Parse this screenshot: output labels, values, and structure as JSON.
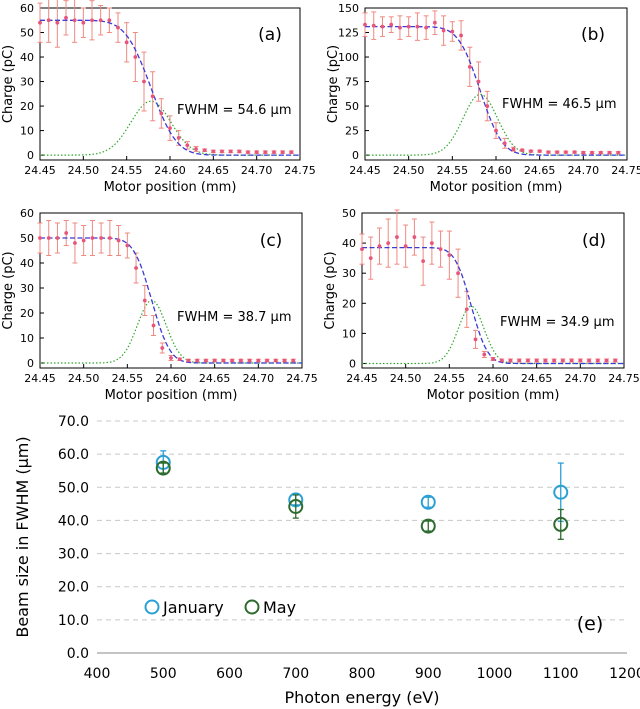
{
  "chart_data": [
    {
      "panel": "a",
      "type": "scatter",
      "xlabel": "Motor position (mm)",
      "ylabel": "Charge (pC)",
      "xlim": [
        24.45,
        24.75
      ],
      "ylim": [
        -2,
        60
      ],
      "xticks": [
        "24.45",
        "24.50",
        "24.55",
        "24.60",
        "24.65",
        "24.70",
        "24.75"
      ],
      "yticks": [
        "0",
        "10",
        "20",
        "30",
        "40",
        "50",
        "60"
      ],
      "annotation": "FWHM = 54.6 μm",
      "letter": "(a)",
      "edge_model": {
        "level": 55,
        "center": 24.578,
        "fwhm_mm": 0.0546,
        "gauss_peak": 22
      },
      "points": [
        {
          "x": 24.45,
          "y": 54,
          "err": 8
        },
        {
          "x": 24.46,
          "y": 55,
          "err": 9
        },
        {
          "x": 24.47,
          "y": 54,
          "err": 10
        },
        {
          "x": 24.48,
          "y": 56,
          "err": 7
        },
        {
          "x": 24.49,
          "y": 55,
          "err": 9
        },
        {
          "x": 24.5,
          "y": 54,
          "err": 6
        },
        {
          "x": 24.51,
          "y": 55,
          "err": 8
        },
        {
          "x": 24.52,
          "y": 55,
          "err": 6
        },
        {
          "x": 24.53,
          "y": 55,
          "err": 5
        },
        {
          "x": 24.54,
          "y": 52,
          "err": 6
        },
        {
          "x": 24.55,
          "y": 46,
          "err": 8
        },
        {
          "x": 24.56,
          "y": 40,
          "err": 10
        },
        {
          "x": 24.57,
          "y": 30,
          "err": 12
        },
        {
          "x": 24.58,
          "y": 24,
          "err": 10
        },
        {
          "x": 24.59,
          "y": 17,
          "err": 6
        },
        {
          "x": 24.6,
          "y": 11,
          "err": 5
        },
        {
          "x": 24.61,
          "y": 7,
          "err": 3
        },
        {
          "x": 24.62,
          "y": 4,
          "err": 1.5
        },
        {
          "x": 24.63,
          "y": 2.5,
          "err": 1
        },
        {
          "x": 24.64,
          "y": 2,
          "err": 0.5
        },
        {
          "x": 24.65,
          "y": 1.5,
          "err": 0.5
        },
        {
          "x": 24.66,
          "y": 1.5,
          "err": 0.5
        },
        {
          "x": 24.67,
          "y": 1.5,
          "err": 0.5
        },
        {
          "x": 24.68,
          "y": 1.5,
          "err": 0.5
        },
        {
          "x": 24.69,
          "y": 1.2,
          "err": 0.5
        },
        {
          "x": 24.7,
          "y": 1.2,
          "err": 0.5
        },
        {
          "x": 24.71,
          "y": 1.2,
          "err": 0.5
        },
        {
          "x": 24.72,
          "y": 1.2,
          "err": 0.5
        },
        {
          "x": 24.73,
          "y": 1.2,
          "err": 0.5
        },
        {
          "x": 24.74,
          "y": 1.2,
          "err": 0.5
        }
      ]
    },
    {
      "panel": "b",
      "type": "scatter",
      "xlabel": "Motor position (mm)",
      "ylabel": "Charge (pC)",
      "xlim": [
        24.45,
        24.75
      ],
      "ylim": [
        -5,
        150
      ],
      "xticks": [
        "24.45",
        "24.50",
        "24.55",
        "24.60",
        "24.65",
        "24.70",
        "24.75"
      ],
      "yticks": [
        "0",
        "25",
        "50",
        "75",
        "100",
        "125",
        "150"
      ],
      "annotation": "FWHM = 46.5 μm",
      "letter": "(b)",
      "edge_model": {
        "level": 131,
        "center": 24.582,
        "fwhm_mm": 0.0465,
        "gauss_peak": 62
      },
      "points": [
        {
          "x": 24.45,
          "y": 133,
          "err": 12
        },
        {
          "x": 24.46,
          "y": 132,
          "err": 14
        },
        {
          "x": 24.47,
          "y": 131,
          "err": 10
        },
        {
          "x": 24.48,
          "y": 133,
          "err": 8
        },
        {
          "x": 24.49,
          "y": 130,
          "err": 12
        },
        {
          "x": 24.5,
          "y": 131,
          "err": 10
        },
        {
          "x": 24.51,
          "y": 131,
          "err": 14
        },
        {
          "x": 24.52,
          "y": 130,
          "err": 12
        },
        {
          "x": 24.53,
          "y": 135,
          "err": 12
        },
        {
          "x": 24.54,
          "y": 127,
          "err": 15
        },
        {
          "x": 24.55,
          "y": 126,
          "err": 10
        },
        {
          "x": 24.56,
          "y": 122,
          "err": 15
        },
        {
          "x": 24.57,
          "y": 90,
          "err": 20
        },
        {
          "x": 24.58,
          "y": 75,
          "err": 20
        },
        {
          "x": 24.59,
          "y": 50,
          "err": 15
        },
        {
          "x": 24.6,
          "y": 25,
          "err": 8
        },
        {
          "x": 24.61,
          "y": 12,
          "err": 5
        },
        {
          "x": 24.62,
          "y": 6,
          "err": 2
        },
        {
          "x": 24.63,
          "y": 5,
          "err": 1
        },
        {
          "x": 24.64,
          "y": 4,
          "err": 1
        },
        {
          "x": 24.65,
          "y": 4,
          "err": 1
        },
        {
          "x": 24.66,
          "y": 3,
          "err": 1
        },
        {
          "x": 24.67,
          "y": 3,
          "err": 1
        },
        {
          "x": 24.68,
          "y": 3,
          "err": 1
        },
        {
          "x": 24.69,
          "y": 3,
          "err": 1
        },
        {
          "x": 24.7,
          "y": 2.5,
          "err": 1
        },
        {
          "x": 24.71,
          "y": 2.5,
          "err": 1
        },
        {
          "x": 24.72,
          "y": 2.5,
          "err": 1
        },
        {
          "x": 24.73,
          "y": 2.5,
          "err": 1
        },
        {
          "x": 24.74,
          "y": 2.5,
          "err": 1
        }
      ]
    },
    {
      "panel": "c",
      "type": "scatter",
      "xlabel": "Motor position (mm)",
      "ylabel": "Charge (pC)",
      "xlim": [
        24.45,
        24.75
      ],
      "ylim": [
        -2,
        60
      ],
      "xticks": [
        "24.45",
        "24.50",
        "24.55",
        "24.60",
        "24.65",
        "24.70",
        "24.75"
      ],
      "yticks": [
        "0",
        "10",
        "20",
        "30",
        "40",
        "50",
        "60"
      ],
      "annotation": "FWHM = 38.7 μm",
      "letter": "(c)",
      "edge_model": {
        "level": 50,
        "center": 24.578,
        "fwhm_mm": 0.0387,
        "gauss_peak": 25
      },
      "points": [
        {
          "x": 24.45,
          "y": 50,
          "err": 6
        },
        {
          "x": 24.46,
          "y": 50,
          "err": 7
        },
        {
          "x": 24.47,
          "y": 50,
          "err": 6
        },
        {
          "x": 24.48,
          "y": 52,
          "err": 5
        },
        {
          "x": 24.49,
          "y": 48,
          "err": 8
        },
        {
          "x": 24.5,
          "y": 49,
          "err": 6
        },
        {
          "x": 24.51,
          "y": 50,
          "err": 7
        },
        {
          "x": 24.52,
          "y": 50,
          "err": 6
        },
        {
          "x": 24.53,
          "y": 50,
          "err": 7
        },
        {
          "x": 24.54,
          "y": 49,
          "err": 6
        },
        {
          "x": 24.55,
          "y": 47,
          "err": 5
        },
        {
          "x": 24.56,
          "y": 38,
          "err": 6
        },
        {
          "x": 24.57,
          "y": 25,
          "err": 6
        },
        {
          "x": 24.58,
          "y": 15,
          "err": 4
        },
        {
          "x": 24.59,
          "y": 6,
          "err": 2
        },
        {
          "x": 24.6,
          "y": 2,
          "err": 1
        },
        {
          "x": 24.61,
          "y": 1.5,
          "err": 0.5
        },
        {
          "x": 24.62,
          "y": 1,
          "err": 0.5
        },
        {
          "x": 24.63,
          "y": 1,
          "err": 0.5
        },
        {
          "x": 24.64,
          "y": 1,
          "err": 0.5
        },
        {
          "x": 24.65,
          "y": 1,
          "err": 0.5
        },
        {
          "x": 24.66,
          "y": 1,
          "err": 0.5
        },
        {
          "x": 24.67,
          "y": 1,
          "err": 0.5
        },
        {
          "x": 24.68,
          "y": 1,
          "err": 0.5
        },
        {
          "x": 24.69,
          "y": 1,
          "err": 0.5
        },
        {
          "x": 24.7,
          "y": 1,
          "err": 0.5
        },
        {
          "x": 24.71,
          "y": 1,
          "err": 0.5
        },
        {
          "x": 24.72,
          "y": 1,
          "err": 0.5
        },
        {
          "x": 24.73,
          "y": 1,
          "err": 0.5
        },
        {
          "x": 24.74,
          "y": 1,
          "err": 0.5
        }
      ]
    },
    {
      "panel": "d",
      "type": "scatter",
      "xlabel": "Motor position (mm)",
      "ylabel": "Charge (pC)",
      "xlim": [
        24.45,
        24.75
      ],
      "ylim": [
        -1.5,
        50
      ],
      "xticks": [
        "24.45",
        "24.50",
        "24.55",
        "24.60",
        "24.65",
        "24.70",
        "24.75"
      ],
      "yticks": [
        "0",
        "10",
        "20",
        "30",
        "40",
        "50"
      ],
      "annotation": "FWHM = 34.9 μm",
      "letter": "(d)",
      "edge_model": {
        "level": 38.5,
        "center": 24.575,
        "fwhm_mm": 0.0349,
        "gauss_peak": 19
      },
      "points": [
        {
          "x": 24.45,
          "y": 38,
          "err": 5
        },
        {
          "x": 24.46,
          "y": 35,
          "err": 7
        },
        {
          "x": 24.47,
          "y": 39,
          "err": 6
        },
        {
          "x": 24.48,
          "y": 40,
          "err": 8
        },
        {
          "x": 24.49,
          "y": 42,
          "err": 9
        },
        {
          "x": 24.5,
          "y": 39,
          "err": 7
        },
        {
          "x": 24.51,
          "y": 42,
          "err": 6
        },
        {
          "x": 24.52,
          "y": 34,
          "err": 8
        },
        {
          "x": 24.53,
          "y": 40,
          "err": 7
        },
        {
          "x": 24.54,
          "y": 38,
          "err": 6
        },
        {
          "x": 24.55,
          "y": 36,
          "err": 8
        },
        {
          "x": 24.56,
          "y": 30,
          "err": 8
        },
        {
          "x": 24.57,
          "y": 18,
          "err": 6
        },
        {
          "x": 24.58,
          "y": 8,
          "err": 3
        },
        {
          "x": 24.59,
          "y": 3,
          "err": 1
        },
        {
          "x": 24.6,
          "y": 1.5,
          "err": 0.5
        },
        {
          "x": 24.61,
          "y": 1,
          "err": 0.5
        },
        {
          "x": 24.62,
          "y": 1,
          "err": 0.5
        },
        {
          "x": 24.63,
          "y": 1,
          "err": 0.5
        },
        {
          "x": 24.64,
          "y": 1,
          "err": 0.5
        },
        {
          "x": 24.65,
          "y": 1,
          "err": 0.5
        },
        {
          "x": 24.66,
          "y": 1,
          "err": 0.5
        },
        {
          "x": 24.67,
          "y": 1,
          "err": 0.5
        },
        {
          "x": 24.68,
          "y": 1,
          "err": 0.5
        },
        {
          "x": 24.69,
          "y": 1,
          "err": 0.5
        },
        {
          "x": 24.7,
          "y": 1,
          "err": 0.5
        },
        {
          "x": 24.71,
          "y": 1,
          "err": 0.5
        },
        {
          "x": 24.72,
          "y": 1,
          "err": 0.5
        },
        {
          "x": 24.73,
          "y": 1,
          "err": 0.5
        },
        {
          "x": 24.74,
          "y": 1,
          "err": 0.5
        }
      ]
    },
    {
      "panel": "e",
      "type": "scatter",
      "xlabel": "Photon energy (eV)",
      "ylabel": "Beam size in FWHM (μm)",
      "xlim": [
        400,
        1200
      ],
      "ylim": [
        0,
        70
      ],
      "xticks": [
        "400",
        "500",
        "600",
        "700",
        "800",
        "900",
        "1000",
        "1100",
        "1200"
      ],
      "yticks": [
        "0.0",
        "10.0",
        "20.0",
        "30.0",
        "40.0",
        "50.0",
        "60.0",
        "70.0"
      ],
      "grid": "horizontal dashed",
      "legend_position": "bottom-left",
      "letter": "(e)",
      "series": [
        {
          "name": "January",
          "color": "#2aa0d6",
          "points": [
            {
              "x": 500,
              "y": 57.5,
              "err": 3.5
            },
            {
              "x": 700,
              "y": 46.2,
              "err": 1.5
            },
            {
              "x": 900,
              "y": 45.5,
              "err": 1.5
            },
            {
              "x": 1100,
              "y": 48.5,
              "err": 8.8
            }
          ]
        },
        {
          "name": "May",
          "color": "#2e6b2e",
          "points": [
            {
              "x": 500,
              "y": 55.8,
              "err": 1.5
            },
            {
              "x": 700,
              "y": 44.2,
              "err": 3.5
            },
            {
              "x": 900,
              "y": 38.3,
              "err": 1.5
            },
            {
              "x": 1100,
              "y": 38.8,
              "err": 4.5
            }
          ]
        }
      ]
    }
  ],
  "colors": {
    "points": "#e8557a",
    "errorbars": "#f08880",
    "fit_curve": "#3b3bd6",
    "gaussian": "#2fa82f",
    "grid": "#c8c8c8"
  }
}
